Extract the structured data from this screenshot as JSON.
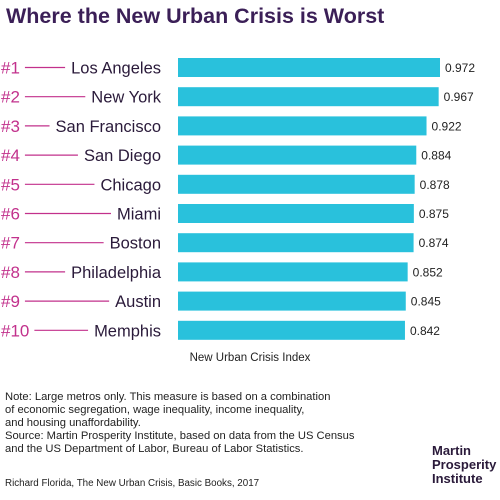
{
  "title": "Where the New Urban Crisis is Worst",
  "colors": {
    "bar": "#29c1dc",
    "rank": "#c2318c",
    "title": "#3b1f57",
    "city": "#2a1a3a"
  },
  "chart_data": {
    "type": "bar",
    "orientation": "horizontal",
    "categories": [
      "Los Angeles",
      "New York",
      "San Francisco",
      "San Diego",
      "Chicago",
      "Miami",
      "Boston",
      "Philadelphia",
      "Austin",
      "Memphis"
    ],
    "ranks": [
      "#1",
      "#2",
      "#3",
      "#4",
      "#5",
      "#6",
      "#7",
      "#8",
      "#9",
      "#10"
    ],
    "values": [
      0.972,
      0.967,
      0.922,
      0.884,
      0.878,
      0.875,
      0.874,
      0.852,
      0.845,
      0.842
    ],
    "value_labels": [
      "0.972",
      "0.967",
      "0.922",
      "0.884",
      "0.878",
      "0.875",
      "0.874",
      "0.852",
      "0.845",
      "0.842"
    ],
    "xlabel": "New Urban Crisis Index",
    "xlim": [
      0,
      0.972
    ],
    "grid": false
  },
  "notes": [
    "Note: Large metros only. This measure is based on a combination",
    "of economic segregation, wage inequality, income inequality,",
    "and housing unaffordability.",
    "Source: Martin Prosperity Institute, based on data from the US Census",
    "and the US Department of Labor, Bureau of Labor Statistics."
  ],
  "credit": "Richard Florida, The New Urban Crisis, Basic Books, 2017",
  "logo": [
    "Martin",
    "Prosperity",
    "Institute"
  ]
}
